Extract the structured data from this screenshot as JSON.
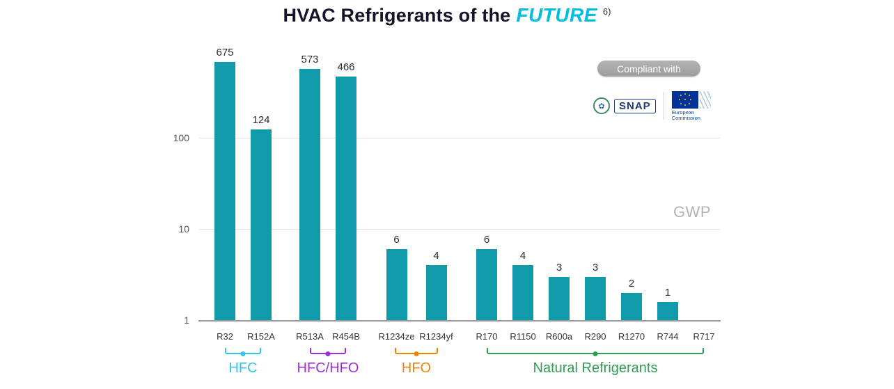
{
  "title": {
    "main": "HVAC Refrigerants of the",
    "highlight": "FUTURE",
    "superscript": "6)"
  },
  "theme": {
    "highlight_color": "#00bde4",
    "badge_bg": "#a8a8a8",
    "bar_color": "#109aaa"
  },
  "compliance": {
    "badge": "Compliant with",
    "snap_label": "SNAP",
    "epa_seal_icon": "epa-seal-icon",
    "eu_line1": "European",
    "eu_line2": "Commission"
  },
  "axis": {
    "gwp_label": "GWP",
    "ticks": [
      100,
      10,
      1
    ]
  },
  "chart_data": {
    "type": "bar",
    "scale": "log",
    "title": "HVAC Refrigerants of the FUTURE",
    "ylabel": "GWP",
    "ylim": [
      1,
      1000
    ],
    "grid": true,
    "bar_color": "#109aaa",
    "groups": [
      {
        "name": "HFC",
        "color": "#35c4e8",
        "bars": [
          {
            "label": "R32",
            "value": 675
          },
          {
            "label": "R152A",
            "value": 124
          }
        ]
      },
      {
        "name": "HFC/HFO",
        "color": "#9c2fd8",
        "bars": [
          {
            "label": "R513A",
            "value": 573
          },
          {
            "label": "R454B",
            "value": 466
          }
        ]
      },
      {
        "name": "HFO",
        "color": "#e8860c",
        "bars": [
          {
            "label": "R1234ze",
            "value": 6
          },
          {
            "label": "R1234yf",
            "value": 4
          }
        ]
      },
      {
        "name": "Natural Refrigerants",
        "color": "#2f9e50",
        "bars": [
          {
            "label": "R170",
            "value": 6
          },
          {
            "label": "R1150",
            "value": 4
          },
          {
            "label": "R600a",
            "value": 3
          },
          {
            "label": "R290",
            "value": 3
          },
          {
            "label": "R1270",
            "value": 2
          },
          {
            "label": "R744",
            "value": 1
          },
          {
            "label": "R717",
            "value": null
          }
        ]
      }
    ]
  }
}
